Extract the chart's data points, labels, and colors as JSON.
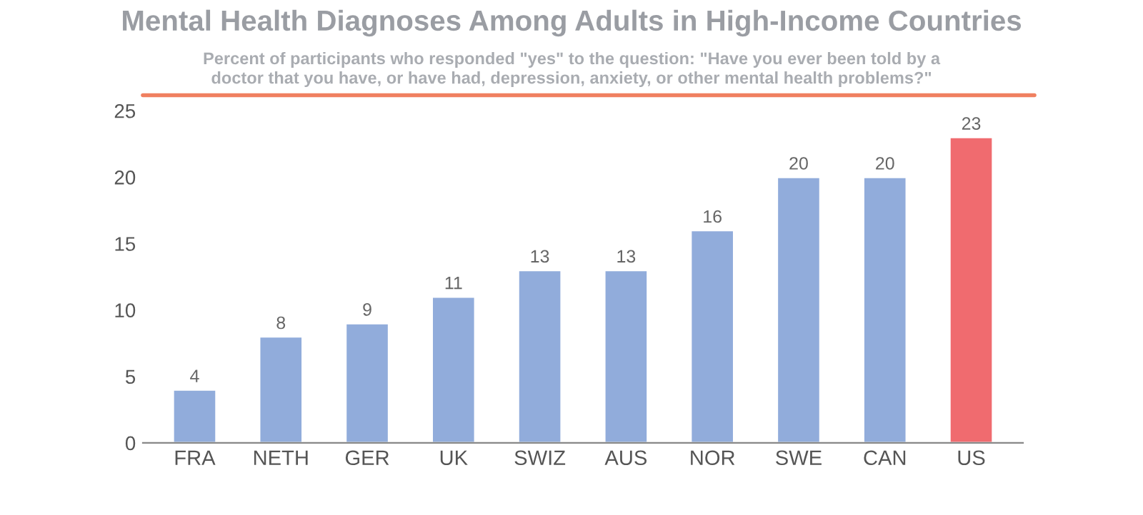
{
  "chart_data": {
    "type": "bar",
    "title": "Mental Health Diagnoses Among Adults in High-Income Countries",
    "subtitle": "Percent of participants who responded \"yes\" to the question: \"Have you ever been told by a\ndoctor that you have, or have had, depression, anxiety, or other mental health problems?\"",
    "categories": [
      "FRA",
      "NETH",
      "GER",
      "UK",
      "SWIZ",
      "AUS",
      "NOR",
      "SWE",
      "CAN",
      "US"
    ],
    "values": [
      4,
      8,
      9,
      11,
      13,
      13,
      16,
      20,
      20,
      23
    ],
    "colors": [
      "#91acdb",
      "#91acdb",
      "#91acdb",
      "#91acdb",
      "#91acdb",
      "#91acdb",
      "#91acdb",
      "#91acdb",
      "#91acdb",
      "#f06b6f"
    ],
    "ylim": [
      0,
      25
    ],
    "yticks": [
      0,
      5,
      10,
      15,
      20,
      25
    ],
    "data_labels": true
  }
}
